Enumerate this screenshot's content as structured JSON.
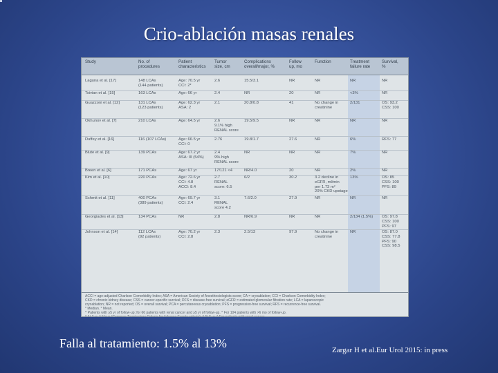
{
  "slide": {
    "title": "Crio-ablación masas renales",
    "bottom_left": "Falla al tratamiento: 1.5% al 13%",
    "bottom_right": "Zargar H et al.Eur Urol 2015: in press"
  },
  "table": {
    "headers": [
      "Study",
      "No. of\nprocedures",
      "Patient\ncharacteristics",
      "Tumor\nsize, cm",
      "Complications\noverall/major, %",
      "Follow\nup, mo",
      "Function",
      "Treatment\nfailure rate",
      "Survival,\n%"
    ],
    "rows": [
      [
        "Laguna et al. [17]",
        "148 LCAs\n(144 patients)",
        "Age: 70.5 yr\nCCI: 2*",
        "2.6",
        "15.5/3.1",
        "NR",
        "NR",
        "NR",
        "NR"
      ],
      [
        "Tsivian et al. [15]",
        "163 LCAs",
        "Age: 66 yr",
        "2.4",
        "NR",
        "20",
        "NR",
        "<3%",
        "NR"
      ],
      [
        "Guazzoni et al. [12]",
        "131 LCAs\n(123 patients)",
        "Age: 62.3 yr\nASA: 2",
        "2.1",
        "20.8/0.8",
        "41",
        "No change in\ncreatinine",
        "2/131",
        "OS: 93.2\nCSS: 100"
      ],
      [
        "Okhunov et al. [7]",
        "210 LCAs",
        "Age: 64.5 yr",
        "2.6\n9.1% high\nRENAL score",
        "19.5/9.5",
        "NR",
        "NR",
        "NR",
        "NR"
      ],
      [
        "Duffey et al. [16]",
        "116 (107 LCAs)",
        "Age: 66.5 yr\nCCI: 0",
        "2.76",
        "19.8/1.7",
        "27.6",
        "NR",
        "6%",
        "RFS: 77"
      ],
      [
        "Blute et al. [9]",
        "139 PCAs",
        "Age: 67.2 yr\nASA: III (54%)",
        "2.4\n9% high\nRENAL score",
        "NR",
        "NR",
        "NR",
        "7%",
        "NR"
      ],
      [
        "Breen et al. [6]",
        "171 PCAs",
        "Age: 67 yr",
        "17/121 <4",
        "NR/4.0",
        "20",
        "NR",
        "2%",
        "NR"
      ],
      [
        "Kim et al. [10]",
        "220 PCAs",
        "Age: 72.6 yr\nCCI: 4.8\nACCI: 8.4",
        "2.7\nRENAL\nscore: 6.5",
        "6/2",
        "30.2",
        "3.2 decline in\neGFR, ml/min\nper 1.73 m²\n20% CKD upstage",
        "13%",
        "OS: 85\nCSS: 100\nPFS: 89"
      ],
      [
        "Schmit et al. [11]",
        "400 PCAs\n(389 patients)",
        "Age: 69.7 yr\nCCI: 2.4",
        "3.1\nRENAL\nscore 4.2",
        "7.6/2.0",
        "27.9",
        "NR",
        "NR",
        "NR"
      ],
      [
        "Georgiades et al. [13]",
        "134 PCAs",
        "NR",
        "2.8",
        "NR/6.9",
        "NR",
        "NR",
        "2/134 (1.5%)",
        "OS: 97.8\nCSS: 100\nPFS: 97"
      ],
      [
        "Johnson et al. [14]",
        "112 LCAs\n(92 patients)",
        "Age: 70.2 yr\nCCI: 2.8",
        "2.3",
        "2.5/13",
        "97.9",
        "No change in\ncreatinine",
        "NR",
        "OS: 87.0\nCSS: 77.8\nPFS: 90\nCSS: 98.5"
      ]
    ],
    "footnotes": "ACCI = age-adjusted Charlson Comorbidity Index; ASA = American Society of Anesthesiologists score; CA = cryoablation; CCI = Charlson Comorbidity Index;\nCKD = chronic kidney disease; CSS = cancer-specific survival; DFS = disease-free survival; eGFR = estimated glomerular filtration rate; LCA = laparoscopic\ncryoablation; NR = not reported; OS = overall survival; PCA = percutaneous cryoablation; PFS = progression-free survival; RFS = recurrence-free survival.\n* Median.  ° Mean.\n^ Patients with ≥5 yr of follow-up; for 66 patients with renal cancer and ≥5 yr of follow-up.  ^ For 104 patients with >6 mo of follow-up.\n^ At 3 yr.  ^ Mayo (Common Terminology Criteria for Adverse Events criteria).  ^ At 5 yr.  ^ For patients with renal cancer."
  }
}
